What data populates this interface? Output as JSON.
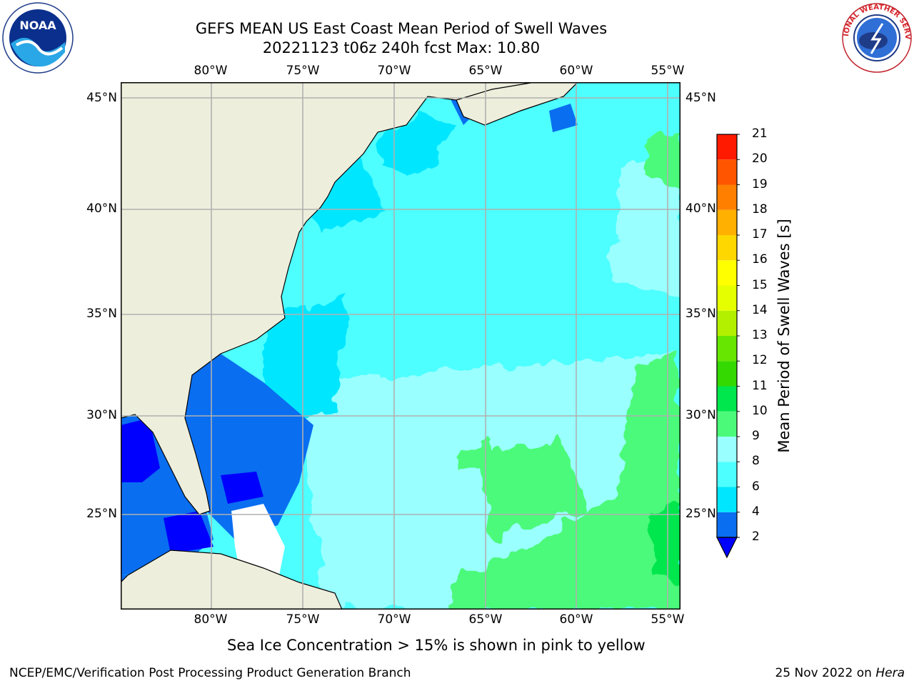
{
  "header": {
    "title_line1": "GEFS MEAN US East Coast Mean Period of Swell Waves",
    "title_line2": "20221123 t06z 240h fcst   Max: 10.80"
  },
  "logos": {
    "left": {
      "icon": "noaa-logo-icon",
      "text": "NOAA"
    },
    "right": {
      "icon": "national-weather-service-logo-icon",
      "text": "NATIONAL WEATHER SERVICE"
    }
  },
  "map": {
    "lon_ticks": [
      "80°W",
      "75°W",
      "70°W",
      "65°W",
      "60°W",
      "55°W"
    ],
    "lat_ticks": [
      "45°N",
      "40°N",
      "35°N",
      "30°N",
      "25°N"
    ],
    "lon_range": [
      -84.4,
      -53.6
    ],
    "lat_range": [
      20.5,
      45.8
    ]
  },
  "colorbar": {
    "label": "Mean Period of Swell Waves [s]",
    "ticks": [
      "2",
      "4",
      "6",
      "8",
      "9",
      "10",
      "11",
      "12",
      "13",
      "14",
      "15",
      "16",
      "17",
      "18",
      "19",
      "20",
      "21"
    ],
    "colors": [
      "#0a6ef0",
      "#00e6ff",
      "#4dffff",
      "#99ffff",
      "#4cfa7a",
      "#00e64d",
      "#33d900",
      "#66e600",
      "#b3f000",
      "#e6ff00",
      "#ffff00",
      "#ffd700",
      "#ffb000",
      "#ff8000",
      "#ff5500",
      "#ff1a00"
    ],
    "under_color": "#0000ff"
  },
  "notes": {
    "ice": "Sea Ice Concentration > 15% is shown in pink to yellow"
  },
  "footer": {
    "left": "NCEP/EMC/Verification Post Processing Product Generation Branch",
    "right_date": "25 Nov 2022 on ",
    "right_host": "Hera"
  }
}
